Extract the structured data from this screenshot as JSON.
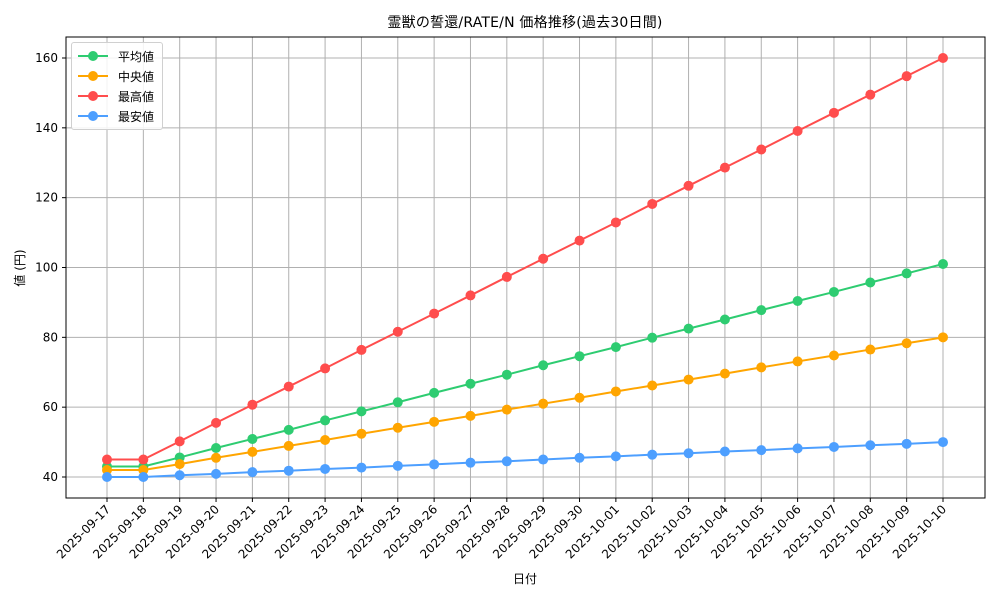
{
  "chart_data": {
    "type": "line",
    "title": "霊獣の誓還/RATE/N 価格推移(過去30日間)",
    "xlabel": "日付",
    "ylabel": "値 (円)",
    "ylim": [
      34,
      166
    ],
    "yticks": [
      40,
      60,
      80,
      100,
      120,
      140,
      160
    ],
    "grid": true,
    "legend_position": "upper left",
    "categories": [
      "2025-09-17",
      "2025-09-18",
      "2025-09-19",
      "2025-09-20",
      "2025-09-21",
      "2025-09-22",
      "2025-09-23",
      "2025-09-24",
      "2025-09-25",
      "2025-09-26",
      "2025-09-27",
      "2025-09-28",
      "2025-09-29",
      "2025-09-30",
      "2025-10-01",
      "2025-10-02",
      "2025-10-03",
      "2025-10-04",
      "2025-10-05",
      "2025-10-06",
      "2025-10-07",
      "2025-10-08",
      "2025-10-09",
      "2025-10-10"
    ],
    "series": [
      {
        "name": "平均値",
        "color": "#2ecc71",
        "values": [
          43.0,
          43.0,
          45.6,
          48.3,
          50.9,
          53.5,
          56.2,
          58.8,
          61.4,
          64.1,
          66.7,
          69.3,
          72.0,
          74.6,
          77.2,
          79.9,
          82.5,
          85.1,
          87.8,
          90.4,
          93.0,
          95.7,
          98.3,
          101.0
        ]
      },
      {
        "name": "中央値",
        "color": "#ffa500",
        "values": [
          42.0,
          42.0,
          43.7,
          45.5,
          47.2,
          48.9,
          50.6,
          52.4,
          54.1,
          55.8,
          57.5,
          59.3,
          61.0,
          62.7,
          64.5,
          66.2,
          67.9,
          69.6,
          71.4,
          73.1,
          74.8,
          76.5,
          78.3,
          80.0
        ]
      },
      {
        "name": "最高値",
        "color": "#ff4d4d",
        "values": [
          45.0,
          45.0,
          50.2,
          55.5,
          60.7,
          65.9,
          71.1,
          76.4,
          81.6,
          86.8,
          92.0,
          97.3,
          102.5,
          107.7,
          112.9,
          118.2,
          123.4,
          128.6,
          133.8,
          139.1,
          144.3,
          149.5,
          154.8,
          160.0
        ]
      },
      {
        "name": "最安値",
        "color": "#4d9fff",
        "values": [
          40.0,
          40.0,
          40.5,
          40.9,
          41.4,
          41.8,
          42.3,
          42.7,
          43.2,
          43.6,
          44.1,
          44.5,
          45.0,
          45.5,
          45.9,
          46.4,
          46.8,
          47.3,
          47.7,
          48.2,
          48.6,
          49.1,
          49.5,
          50.0
        ]
      }
    ]
  }
}
